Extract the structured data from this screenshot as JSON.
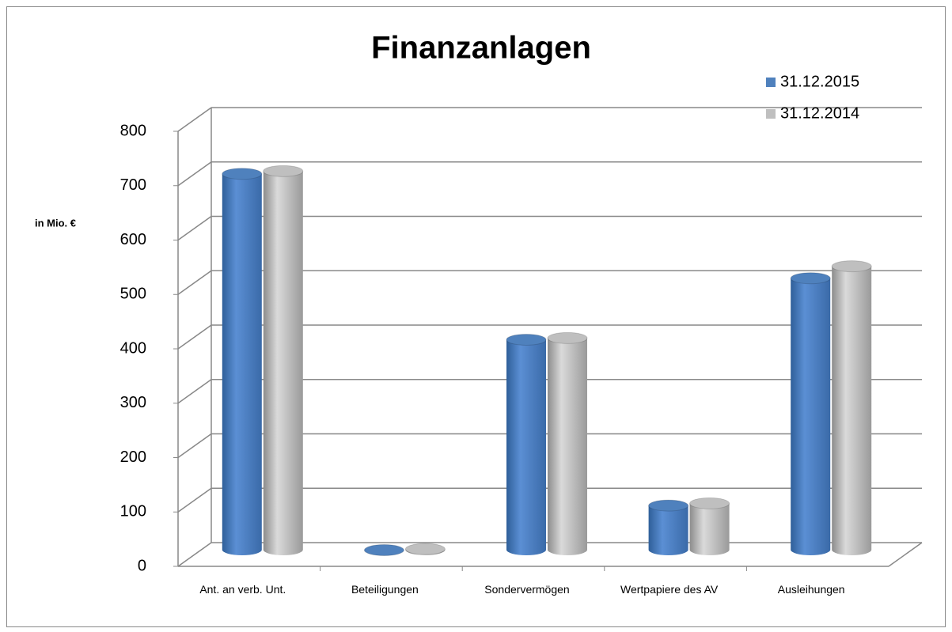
{
  "chart_data": {
    "type": "bar3d",
    "title": "Finanzanlagen",
    "y_label": "in Mio. €",
    "categories": [
      "Ant. an verb. Unt.",
      "Beteiligungen",
      "Sondervermögen",
      "Wertpapiere des AV",
      "Ausleihungen"
    ],
    "series": [
      {
        "name": "31.12.2015",
        "color": "#4f81bd",
        "values": [
          700,
          8,
          395,
          90,
          508
        ]
      },
      {
        "name": "31.12.2014",
        "color": "#bfbfbf",
        "values": [
          705,
          10,
          398,
          94,
          530
        ]
      }
    ],
    "ylim": [
      0,
      800
    ],
    "yticks": [
      0,
      100,
      200,
      300,
      400,
      500,
      600,
      700,
      800
    ],
    "grid": true,
    "legend": "top-right"
  }
}
